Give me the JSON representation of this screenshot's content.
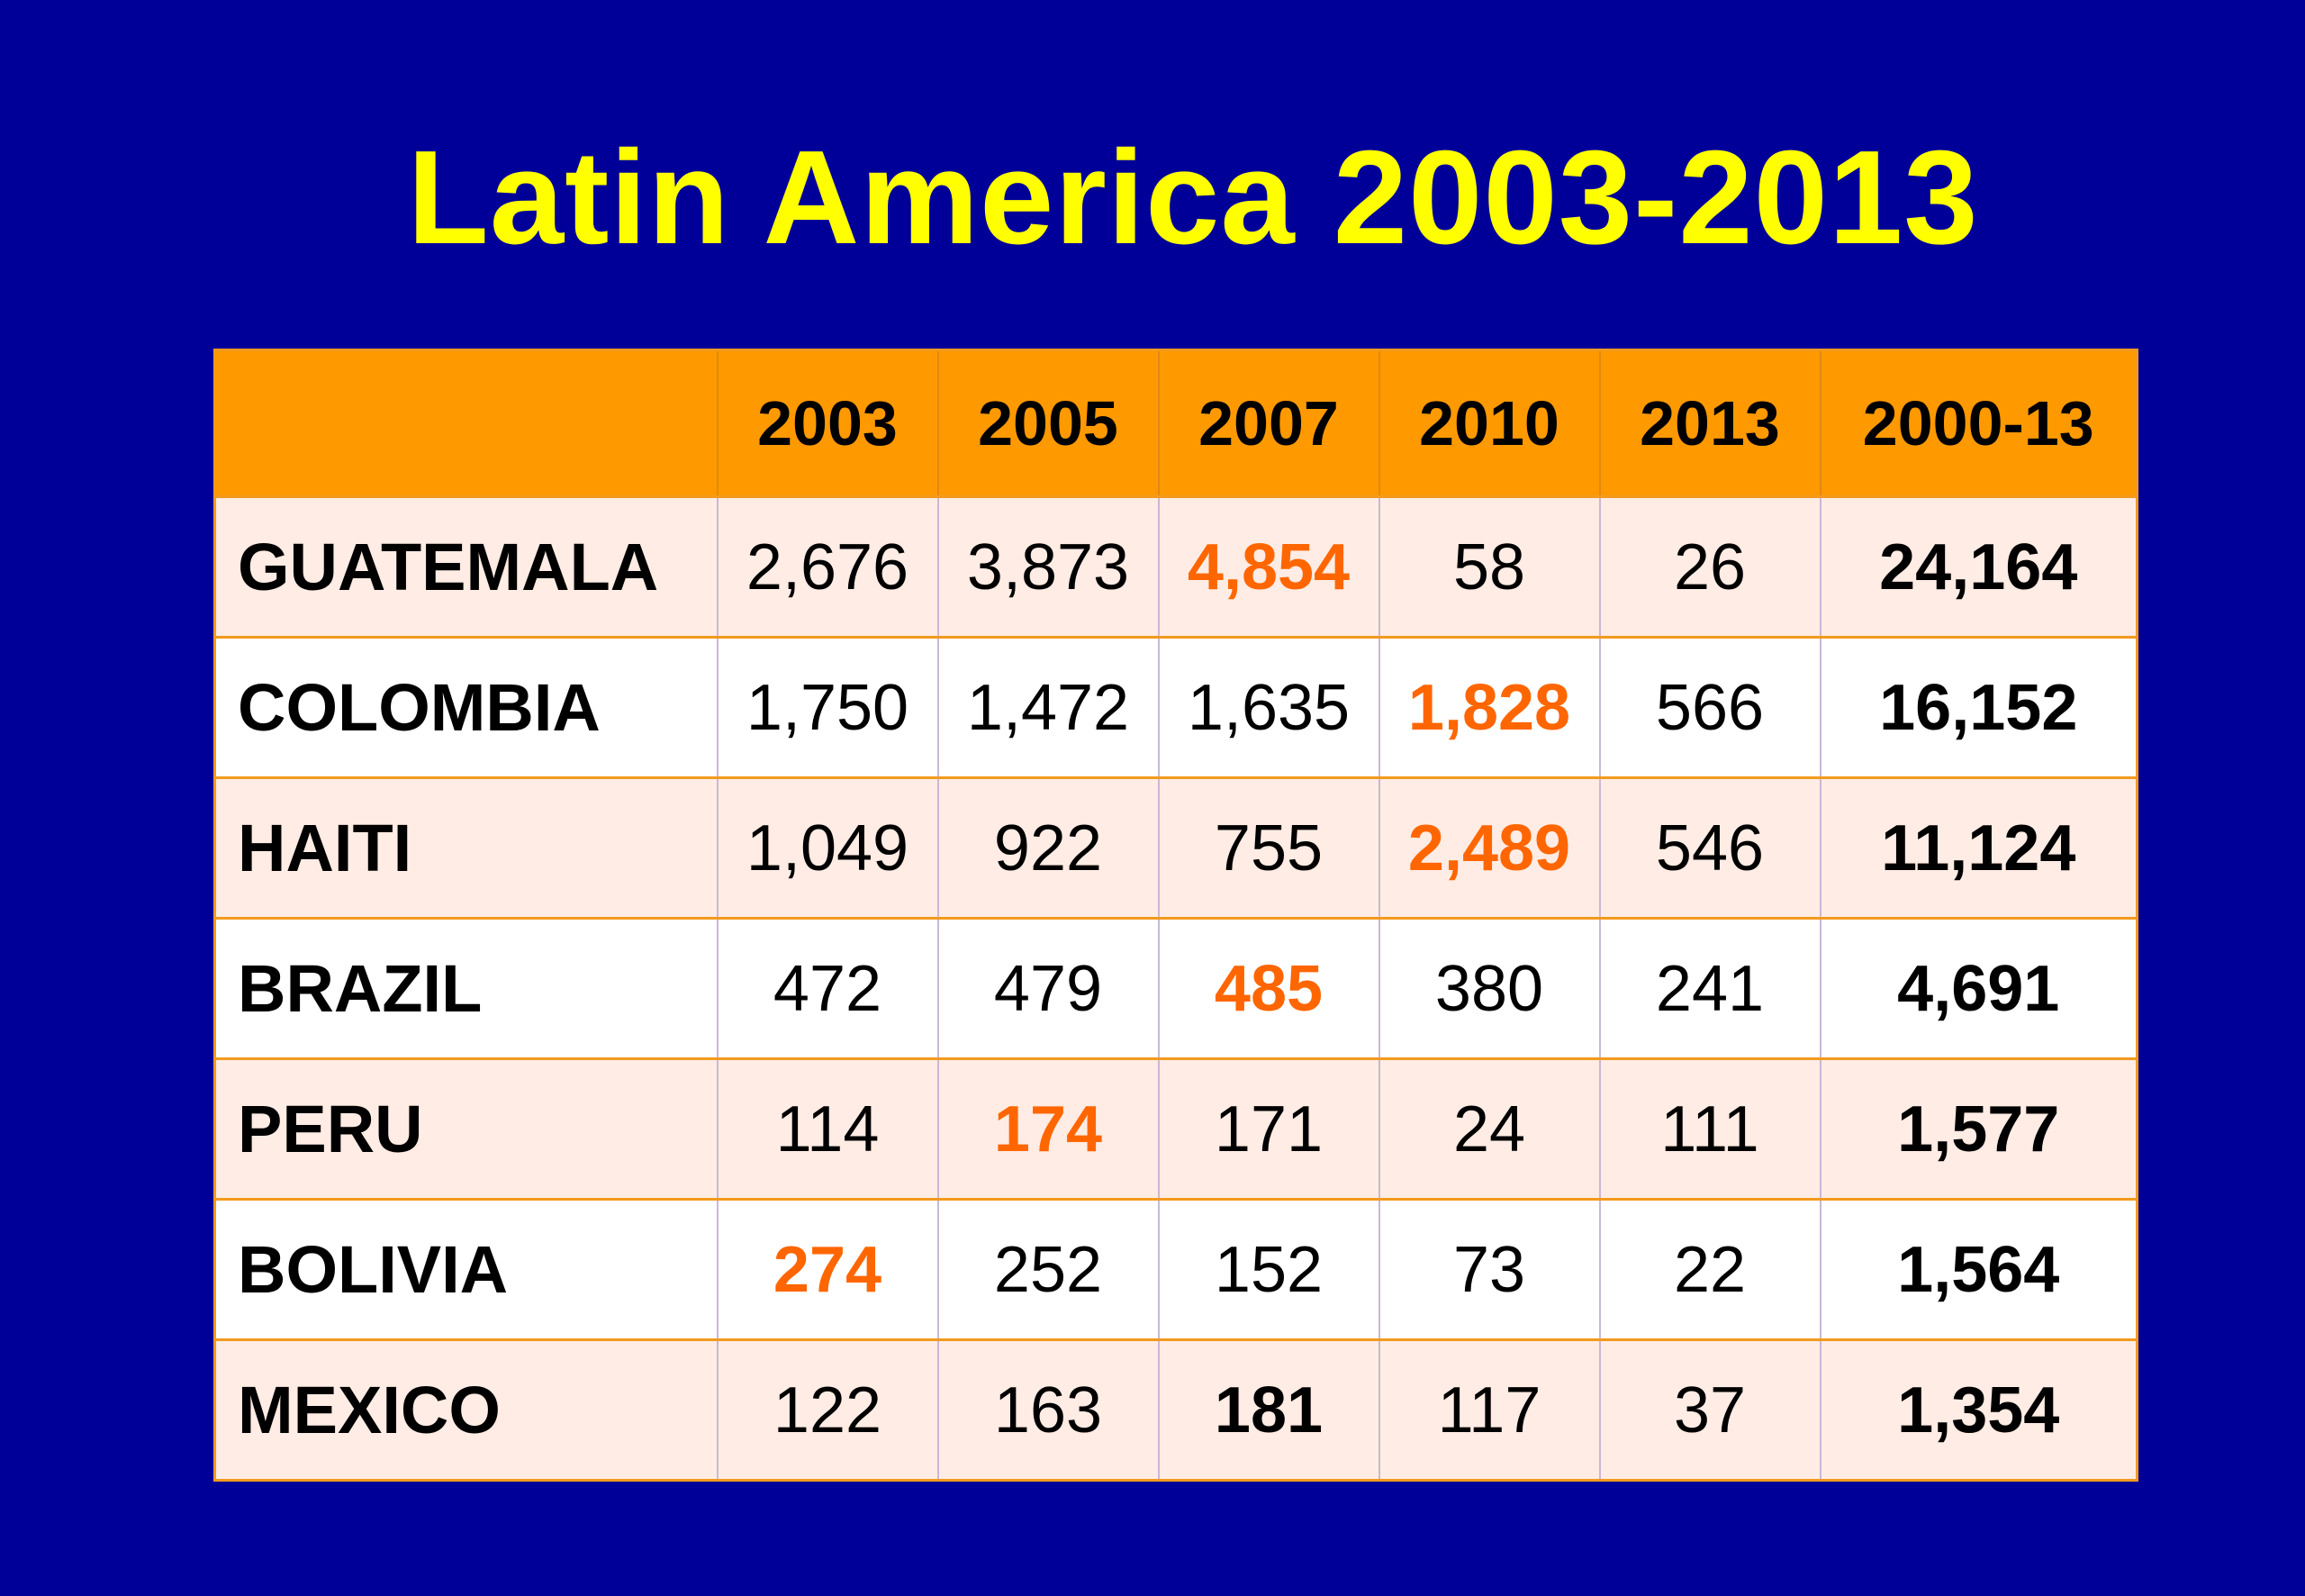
{
  "title": "Latin America 2003-2013",
  "colors": {
    "background": "#000099",
    "title": "#ffff00",
    "header_bg": "#ff9900",
    "highlight": "#ff6600",
    "row_tint": "#ffece4"
  },
  "table": {
    "columns": [
      "",
      "2003",
      "2005",
      "2007",
      "2010",
      "2013",
      "2000-13"
    ],
    "rows": [
      {
        "country": "GUATEMALA",
        "values": [
          "2,676",
          "3,873",
          "4,854",
          "58",
          "26"
        ],
        "total": "24,164"
      },
      {
        "country": "COLOMBIA",
        "values": [
          "1,750",
          "1,472",
          "1,635",
          "1,828",
          "566"
        ],
        "total": "16,152"
      },
      {
        "country": "HAITI",
        "values": [
          "1,049",
          "922",
          "755",
          "2,489",
          "546"
        ],
        "total": "11,124"
      },
      {
        "country": "BRAZIL",
        "values": [
          "472",
          "479",
          "485",
          "380",
          "241"
        ],
        "total": "4,691"
      },
      {
        "country": "PERU",
        "values": [
          "114",
          "174",
          "171",
          "24",
          "111"
        ],
        "total": "1,577"
      },
      {
        "country": "BOLIVIA",
        "values": [
          "274",
          "252",
          "152",
          "73",
          "22"
        ],
        "total": "1,564"
      },
      {
        "country": "MEXICO",
        "values": [
          "122",
          "163",
          "181",
          "117",
          "37"
        ],
        "total": "1,354"
      }
    ]
  }
}
